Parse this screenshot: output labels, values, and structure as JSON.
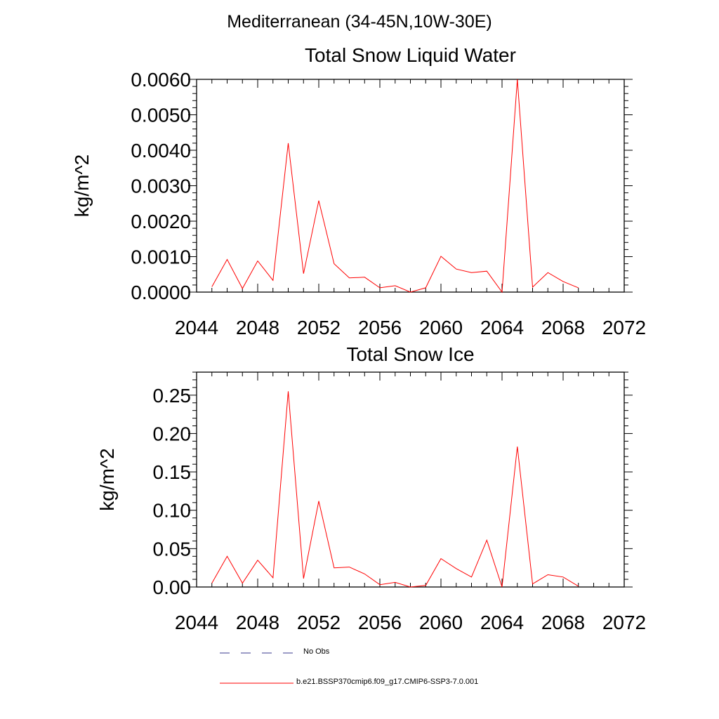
{
  "page_title": "Mediterranean (34-45N,10W-30E)",
  "legend": [
    {
      "label": "No Obs",
      "color": "#3a3a8c",
      "style": "dashed"
    },
    {
      "label": "b.e21.BSSP370cmip6.f09_g17.CMIP6-SSP3-7.0.001",
      "color": "#ff0000",
      "style": "solid"
    }
  ],
  "chart_data": [
    {
      "type": "line",
      "title": "Total Snow Liquid Water",
      "xlabel": "",
      "ylabel": "kg/m^2",
      "xlim": [
        2044,
        2072
      ],
      "ylim": [
        0,
        0.006
      ],
      "xticks": [
        "2044",
        "2048",
        "2052",
        "2056",
        "2060",
        "2064",
        "2068",
        "2072"
      ],
      "yticks": [
        "0.0000",
        "0.0010",
        "0.0020",
        "0.0030",
        "0.0040",
        "0.0050",
        "0.0060"
      ],
      "grid": false,
      "series": [
        {
          "color": "#ff0000",
          "x": [
            2045,
            2046,
            2047,
            2048,
            2049,
            2050,
            2051,
            2052,
            2053,
            2054,
            2055,
            2056,
            2057,
            2058,
            2059,
            2060,
            2061,
            2062,
            2063,
            2064,
            2065,
            2066,
            2067,
            2068,
            2069
          ],
          "y": [
            0.00015,
            0.00092,
            0.0001,
            0.00088,
            0.00033,
            0.0042,
            0.00052,
            0.00258,
            0.0008,
            0.0004,
            0.00042,
            0.00012,
            0.00018,
            0.0,
            0.00012,
            0.00101,
            0.00065,
            0.00055,
            0.00059,
            0.0,
            0.006,
            0.00014,
            0.00055,
            0.0003,
            0.00012
          ]
        }
      ]
    },
    {
      "type": "line",
      "title": "Total Snow Ice",
      "xlabel": "",
      "ylabel": "kg/m^2",
      "xlim": [
        2044,
        2072
      ],
      "ylim": [
        0,
        0.28
      ],
      "xticks": [
        "2044",
        "2048",
        "2052",
        "2056",
        "2060",
        "2064",
        "2068",
        "2072"
      ],
      "yticks": [
        "0.00",
        "0.05",
        "0.10",
        "0.15",
        "0.20",
        "0.25"
      ],
      "grid": false,
      "series": [
        {
          "color": "#ff0000",
          "x": [
            2045,
            2046,
            2047,
            2048,
            2049,
            2050,
            2051,
            2052,
            2053,
            2054,
            2055,
            2056,
            2057,
            2058,
            2059,
            2060,
            2061,
            2062,
            2063,
            2064,
            2065,
            2066,
            2067,
            2068,
            2069
          ],
          "y": [
            0.005,
            0.04,
            0.005,
            0.035,
            0.012,
            0.255,
            0.011,
            0.112,
            0.025,
            0.026,
            0.017,
            0.003,
            0.006,
            0.0,
            0.002,
            0.037,
            0.024,
            0.013,
            0.061,
            0.0,
            0.183,
            0.004,
            0.016,
            0.013,
            0.001
          ]
        }
      ]
    }
  ]
}
